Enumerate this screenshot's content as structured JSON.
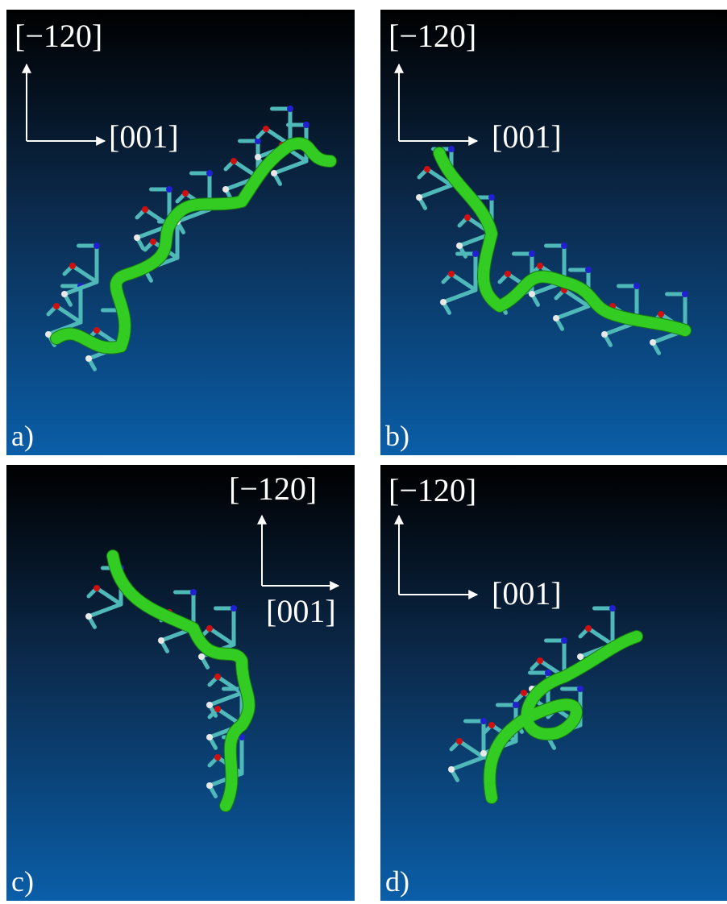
{
  "panels": [
    {
      "label": "a)",
      "axis_vertical": "[−120]",
      "axis_horizontal": "[001]"
    },
    {
      "label": "b)",
      "axis_vertical": "[−120]",
      "axis_horizontal": "[001]"
    },
    {
      "label": "c)",
      "axis_vertical": "[−120]",
      "axis_horizontal": "[001]"
    },
    {
      "label": "d)",
      "axis_vertical": "[−120]",
      "axis_horizontal": "[001]"
    }
  ]
}
